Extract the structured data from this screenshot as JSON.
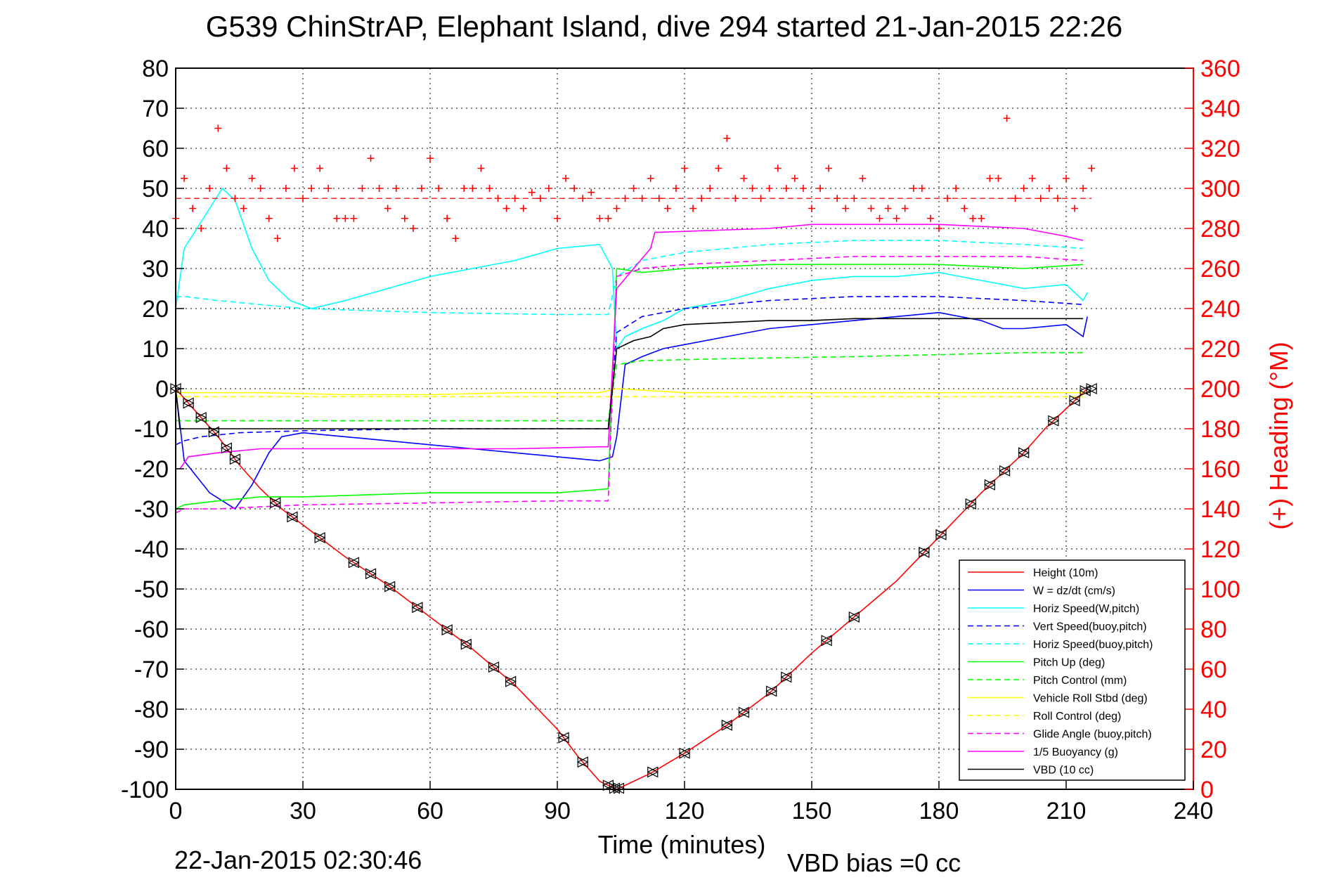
{
  "title": "G539 ChinStrAP, Elephant Island, dive 294 started 21-Jan-2015 22:26",
  "footer": {
    "timestamp": "22-Jan-2015 02:30:46",
    "vbd_bias": "VBD bias =0 cc"
  },
  "chart_data": {
    "type": "line",
    "title": "G539 ChinStrAP, Elephant Island, dive 294 started 21-Jan-2015 22:26",
    "xlabel": "Time (minutes)",
    "ylabel": "",
    "y2label": "(+) Heading (°M)",
    "xlim": [
      0,
      240
    ],
    "ylim": [
      -100,
      80
    ],
    "y2lim": [
      0,
      360
    ],
    "xticks": [
      0,
      30,
      60,
      90,
      120,
      150,
      180,
      210,
      240
    ],
    "yticks": [
      80,
      70,
      60,
      50,
      40,
      30,
      20,
      10,
      0,
      -10,
      -20,
      -30,
      -40,
      -50,
      -60,
      -70,
      -80,
      -90,
      -100
    ],
    "y2ticks": [
      360,
      340,
      320,
      300,
      280,
      260,
      240,
      220,
      200,
      180,
      160,
      140,
      120,
      100,
      80,
      60,
      40,
      20,
      0
    ],
    "grid": true,
    "legend_position": "bottom-right",
    "colors": {
      "red": "#ff0000",
      "blue": "#0000ff",
      "cyan": "#00ffff",
      "green": "#00ff00",
      "yellow": "#ffff00",
      "magenta": "#ff00ff",
      "black": "#000000",
      "right_axis": "#ff0000"
    },
    "series": [
      {
        "name": "Height (10m)",
        "color": "#ff0000",
        "dash": false,
        "x": [
          0,
          5,
          10,
          15,
          20,
          25,
          30,
          40,
          50,
          60,
          70,
          80,
          90,
          95,
          100,
          104,
          108,
          112,
          120,
          130,
          140,
          150,
          160,
          170,
          180,
          190,
          200,
          205,
          210,
          215
        ],
        "y": [
          0,
          -6,
          -12,
          -19,
          -25,
          -30,
          -34,
          -42,
          -49,
          -57,
          -65,
          -74,
          -85,
          -92,
          -98,
          -100,
          -98,
          -96,
          -91,
          -84,
          -76,
          -66,
          -57,
          -48,
          -37,
          -26,
          -16,
          -10,
          -5,
          0
        ]
      },
      {
        "name": "W = dz/dt (cm/s)",
        "color": "#0000ff",
        "dash": false,
        "x": [
          0,
          2,
          5,
          8,
          11,
          14,
          18,
          22,
          25,
          30,
          40,
          50,
          60,
          70,
          80,
          90,
          100,
          103,
          104,
          106,
          110,
          115,
          120,
          130,
          140,
          150,
          160,
          170,
          180,
          190,
          195,
          200,
          210,
          214,
          215
        ],
        "y": [
          0,
          -18,
          -22,
          -26,
          -28,
          -30,
          -24,
          -16,
          -12,
          -11,
          -12,
          -13,
          -14,
          -15,
          -16,
          -17,
          -18,
          -17,
          -12,
          6,
          8,
          10,
          11,
          13,
          15,
          16,
          17,
          18,
          19,
          17,
          15,
          15,
          16,
          13,
          18
        ]
      },
      {
        "name": "Horiz Speed(W,pitch)",
        "color": "#00ffff",
        "dash": false,
        "x": [
          0,
          2,
          5,
          8,
          11,
          14,
          18,
          22,
          27,
          32,
          40,
          50,
          60,
          70,
          80,
          90,
          100,
          102,
          103,
          104,
          106,
          110,
          115,
          120,
          130,
          140,
          150,
          160,
          170,
          180,
          190,
          200,
          210,
          214,
          215
        ],
        "y": [
          20,
          35,
          40,
          45,
          50,
          47,
          35,
          27,
          22,
          20,
          22,
          25,
          28,
          30,
          32,
          35,
          36,
          32,
          30,
          10,
          13,
          15,
          17,
          20,
          22,
          25,
          27,
          28,
          28,
          29,
          27,
          25,
          26,
          22,
          24
        ]
      },
      {
        "name": "Vert Speed(buoy,pitch)",
        "color": "#0000ff",
        "dash": true,
        "x": [
          0,
          2,
          6,
          15,
          30,
          60,
          90,
          102,
          104,
          110,
          120,
          140,
          160,
          180,
          200,
          214
        ],
        "y": [
          -14,
          -13,
          -12,
          -11,
          -10.5,
          -10,
          -10,
          -10,
          14,
          18,
          20,
          22,
          23,
          23,
          22,
          21
        ]
      },
      {
        "name": "Horiz Speed(buoy,pitch)",
        "color": "#00ffff",
        "dash": true,
        "x": [
          0,
          2,
          10,
          30,
          60,
          90,
          102,
          104,
          110,
          120,
          140,
          160,
          180,
          200,
          214
        ],
        "y": [
          23,
          23,
          22,
          20,
          19,
          18.5,
          18.5,
          28,
          32,
          34,
          36,
          37,
          37,
          36,
          35
        ]
      },
      {
        "name": "Pitch Up (deg)",
        "color": "#00ff00",
        "dash": false,
        "x": [
          0,
          2,
          10,
          20,
          30,
          60,
          90,
          102,
          104,
          110,
          120,
          140,
          160,
          180,
          200,
          214
        ],
        "y": [
          -30,
          -29,
          -28,
          -27,
          -27,
          -26,
          -26,
          -25,
          30,
          29,
          30,
          31,
          31,
          31,
          30,
          31
        ]
      },
      {
        "name": "Pitch Control (mm)",
        "color": "#00ff00",
        "dash": true,
        "x": [
          0,
          2,
          30,
          60,
          90,
          102,
          104,
          110,
          130,
          160,
          180,
          200,
          214
        ],
        "y": [
          -8,
          -8,
          -8,
          -8,
          -8,
          -8,
          6,
          7,
          7.5,
          8,
          8.5,
          9,
          9
        ]
      },
      {
        "name": "Vehicle Roll Stbd (deg)",
        "color": "#ffff00",
        "dash": false,
        "x": [
          0,
          20,
          40,
          60,
          80,
          100,
          104,
          120,
          140,
          160,
          180,
          200,
          214
        ],
        "y": [
          -1,
          -1,
          -1.5,
          -1.5,
          -1,
          -1,
          0,
          -1,
          -1,
          -1,
          -1,
          -1,
          -1
        ]
      },
      {
        "name": "Roll Control (deg)",
        "color": "#ffff00",
        "dash": true,
        "x": [
          0,
          30,
          60,
          90,
          102,
          104,
          130,
          160,
          190,
          214
        ],
        "y": [
          -2,
          -2,
          -2,
          -2,
          -2,
          -2,
          -2,
          -2,
          -2,
          -2
        ]
      },
      {
        "name": "Glide Angle (buoy,pitch)",
        "color": "#ff00ff",
        "dash": true,
        "x": [
          0,
          2,
          10,
          20,
          30,
          60,
          90,
          102,
          104,
          110,
          120,
          140,
          160,
          180,
          200,
          214
        ],
        "y": [
          -31,
          -30,
          -30,
          -29.5,
          -29,
          -28.5,
          -28,
          -28,
          28,
          30,
          31,
          32,
          33,
          33,
          33,
          32
        ]
      },
      {
        "name": "1/5 Buoyancy (g)",
        "color": "#ff00ff",
        "dash": false,
        "x": [
          0,
          1,
          3,
          10,
          20,
          40,
          60,
          80,
          100,
          102,
          104,
          112,
          113,
          140,
          150,
          180,
          200,
          210,
          214
        ],
        "y": [
          -20,
          -20,
          -17,
          -16,
          -15,
          -15,
          -15,
          -15,
          -14.5,
          -14.5,
          25,
          35,
          39,
          40,
          41,
          41,
          40,
          38,
          37
        ]
      },
      {
        "name": "VBD (10 cc)",
        "color": "#000000",
        "dash": false,
        "x": [
          0,
          1,
          2,
          20,
          50,
          80,
          100,
          102,
          104,
          108,
          112,
          115,
          120,
          130,
          140,
          150,
          160,
          180,
          200,
          214
        ],
        "y": [
          0,
          -10,
          -10,
          -10,
          -10,
          -10,
          -10,
          -10,
          10,
          12,
          13,
          15,
          16,
          16.5,
          17,
          17,
          17.5,
          17.5,
          17.5,
          17.5
        ]
      }
    ],
    "heading": {
      "name": "(+) Heading",
      "axis": "right",
      "color": "#ff0000",
      "marker": "+",
      "target_heading": 295,
      "x": [
        0,
        2,
        4,
        6,
        8,
        10,
        12,
        14,
        16,
        18,
        20,
        22,
        24,
        26,
        28,
        30,
        32,
        34,
        36,
        38,
        40,
        42,
        44,
        46,
        48,
        50,
        52,
        54,
        56,
        58,
        60,
        62,
        64,
        66,
        68,
        70,
        72,
        74,
        76,
        78,
        80,
        82,
        84,
        86,
        88,
        90,
        92,
        94,
        96,
        98,
        100,
        102,
        104,
        106,
        108,
        110,
        112,
        114,
        116,
        118,
        120,
        122,
        124,
        126,
        128,
        130,
        132,
        134,
        136,
        138,
        140,
        142,
        144,
        146,
        148,
        150,
        152,
        154,
        156,
        158,
        160,
        162,
        164,
        166,
        168,
        170,
        172,
        174,
        176,
        178,
        180,
        182,
        184,
        186,
        188,
        190,
        192,
        194,
        196,
        198,
        200,
        202,
        204,
        206,
        208,
        210,
        212,
        214,
        216
      ],
      "y": [
        285,
        305,
        290,
        280,
        300,
        330,
        310,
        295,
        290,
        305,
        300,
        285,
        275,
        300,
        310,
        295,
        300,
        310,
        300,
        285,
        285,
        285,
        300,
        315,
        300,
        290,
        300,
        285,
        280,
        300,
        315,
        300,
        285,
        275,
        300,
        300,
        310,
        300,
        295,
        290,
        295,
        290,
        298,
        295,
        300,
        285,
        305,
        300,
        295,
        298,
        285,
        285,
        290,
        295,
        300,
        295,
        305,
        295,
        290,
        300,
        310,
        290,
        295,
        300,
        310,
        325,
        295,
        305,
        300,
        295,
        300,
        310,
        300,
        305,
        300,
        290,
        300,
        310,
        295,
        290,
        295,
        305,
        290,
        285,
        290,
        285,
        290,
        300,
        300,
        285,
        280,
        295,
        300,
        290,
        285,
        285,
        305,
        305,
        335,
        295,
        300,
        305,
        295,
        300,
        295,
        305,
        290,
        300,
        310
      ]
    },
    "waypoint_marker_x": [
      0,
      3,
      6,
      9,
      12,
      14,
      23.5,
      27.5,
      34,
      42,
      46,
      50.5,
      57,
      64,
      68.5,
      75,
      79,
      91.5,
      96,
      102,
      103.5,
      104.5,
      112.5,
      120,
      130,
      134,
      140.5,
      144,
      153.5,
      160,
      176.5,
      180.5,
      187.5,
      192,
      195.5,
      200,
      207,
      212,
      214.5,
      216
    ]
  }
}
